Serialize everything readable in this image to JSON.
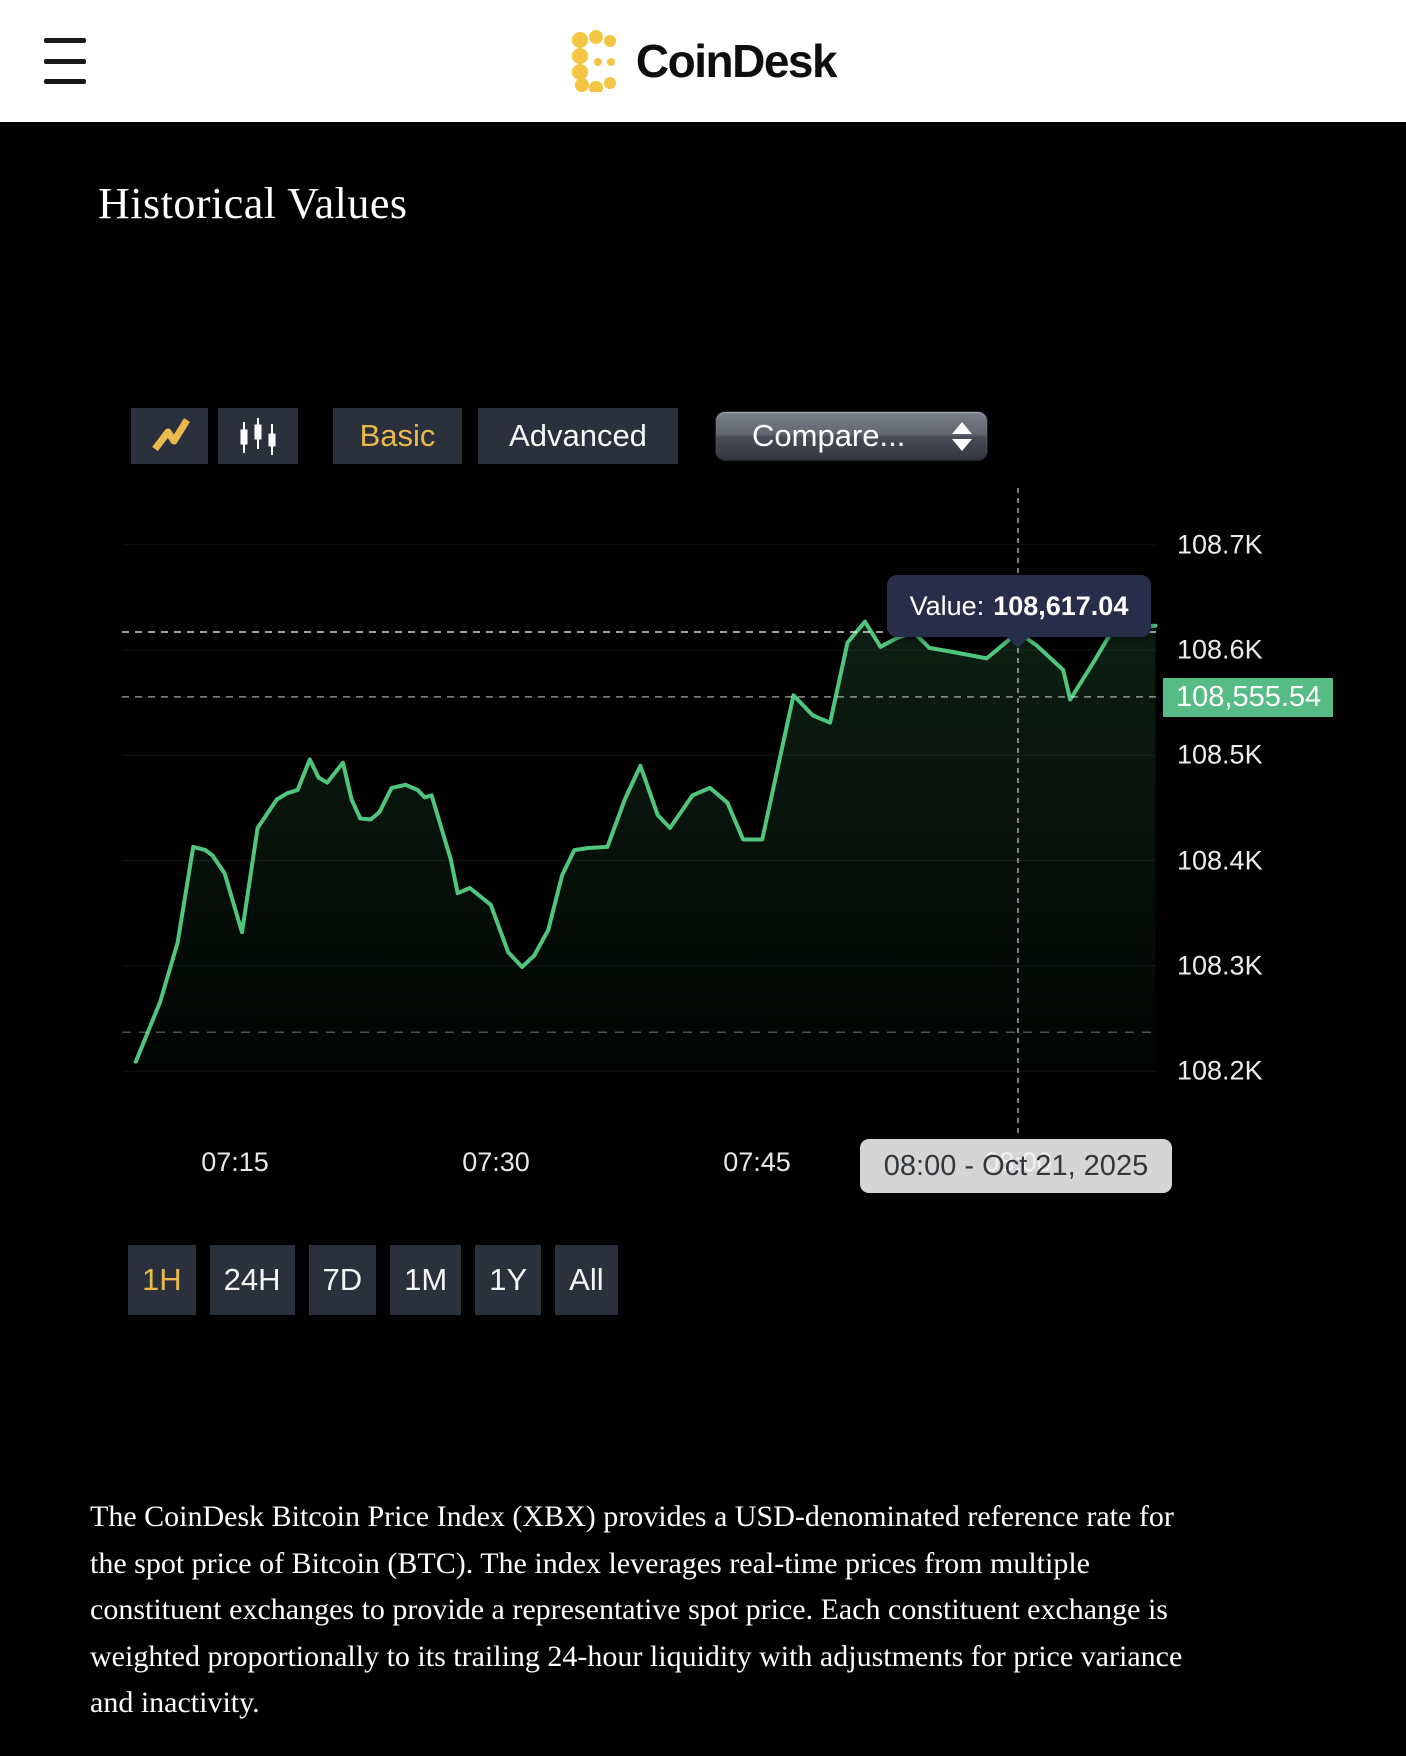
{
  "header": {
    "brand": "CoinDesk"
  },
  "page_title": "Historical Values",
  "toolbar": {
    "chart_type_buttons": [
      {
        "name": "line-chart",
        "icon": "line-chart-icon",
        "active": true
      },
      {
        "name": "candlestick-chart",
        "icon": "candlestick-icon",
        "active": false
      }
    ],
    "mode_buttons": [
      {
        "label": "Basic",
        "active": true
      },
      {
        "label": "Advanced",
        "active": false
      }
    ],
    "compare_label": "Compare..."
  },
  "chart_data": {
    "type": "area",
    "title": "",
    "xlabel": "",
    "ylabel": "",
    "grid": true,
    "legend": false,
    "x_axis": {
      "unit": "time",
      "range": [
        "07:09",
        "08:08"
      ],
      "ticks": [
        {
          "minutes": 15,
          "label": "07:15"
        },
        {
          "minutes": 30,
          "label": "07:30"
        },
        {
          "minutes": 45,
          "label": "07:45"
        },
        {
          "minutes": 60,
          "label": "08:00"
        }
      ]
    },
    "y_axis": {
      "ylim": [
        108200,
        108750
      ],
      "ticks": [
        {
          "value": 108700,
          "label": "108.7K"
        },
        {
          "value": 108600,
          "label": "108.6K"
        },
        {
          "value": 108500,
          "label": "108.5K"
        },
        {
          "value": 108400,
          "label": "108.4K"
        },
        {
          "value": 108300,
          "label": "108.3K"
        },
        {
          "value": 108200,
          "label": "108.2K"
        }
      ]
    },
    "series": [
      {
        "name": "CoinDesk Bitcoin Price Index (XBX)",
        "color": "#4fc57d",
        "points": [
          [
            9.3,
            108209
          ],
          [
            10.7,
            108266
          ],
          [
            11.7,
            108322
          ],
          [
            12.6,
            108413
          ],
          [
            13.3,
            108410
          ],
          [
            13.7,
            108405
          ],
          [
            14.4,
            108388
          ],
          [
            15.4,
            108332
          ],
          [
            16.3,
            108431
          ],
          [
            17.4,
            108458
          ],
          [
            18.0,
            108464
          ],
          [
            18.6,
            108467
          ],
          [
            19.3,
            108496
          ],
          [
            19.8,
            108479
          ],
          [
            20.3,
            108474
          ],
          [
            21.2,
            108493
          ],
          [
            21.7,
            108458
          ],
          [
            22.2,
            108440
          ],
          [
            22.8,
            108439
          ],
          [
            23.3,
            108446
          ],
          [
            24.0,
            108469
          ],
          [
            24.8,
            108472
          ],
          [
            25.5,
            108467
          ],
          [
            25.9,
            108460
          ],
          [
            26.3,
            108462
          ],
          [
            27.4,
            108401
          ],
          [
            27.8,
            108369
          ],
          [
            28.5,
            108374
          ],
          [
            28.8,
            108370
          ],
          [
            29.7,
            108358
          ],
          [
            30.7,
            108313
          ],
          [
            31.5,
            108299
          ],
          [
            32.2,
            108310
          ],
          [
            33.0,
            108334
          ],
          [
            33.8,
            108386
          ],
          [
            34.5,
            108410
          ],
          [
            35.3,
            108412
          ],
          [
            36.4,
            108413
          ],
          [
            37.4,
            108458
          ],
          [
            38.3,
            108490
          ],
          [
            39.3,
            108443
          ],
          [
            40.0,
            108431
          ],
          [
            41.3,
            108462
          ],
          [
            42.3,
            108469
          ],
          [
            43.3,
            108455
          ],
          [
            44.2,
            108420
          ],
          [
            45.3,
            108420
          ],
          [
            47.1,
            108557
          ],
          [
            48.2,
            108538
          ],
          [
            49.2,
            108531
          ],
          [
            50.2,
            108607
          ],
          [
            51.2,
            108627
          ],
          [
            52.1,
            108603
          ],
          [
            53.0,
            108611
          ],
          [
            54.0,
            108617
          ],
          [
            54.9,
            108602
          ],
          [
            56.3,
            108598
          ],
          [
            58.2,
            108592
          ],
          [
            59.0,
            108603
          ],
          [
            60.0,
            108617.04
          ],
          [
            61.1,
            108604
          ],
          [
            62.6,
            108581
          ],
          [
            63.0,
            108553
          ],
          [
            64.4,
            108590
          ],
          [
            65.9,
            108632
          ],
          [
            66.6,
            108622
          ],
          [
            67.9,
            108623
          ]
        ]
      }
    ],
    "hover": {
      "time_minutes": 60,
      "tooltip_prefix": "Value:",
      "value": 108617.04,
      "value_label": "108,617.04",
      "date_label": "08:00 - Oct 21, 2025"
    },
    "current_price": {
      "value": 108555.54,
      "label": "108,555.54"
    },
    "open_line_value": 108237
  },
  "range_buttons": [
    {
      "label": "1H",
      "active": true
    },
    {
      "label": "24H",
      "active": false
    },
    {
      "label": "7D",
      "active": false
    },
    {
      "label": "1M",
      "active": false
    },
    {
      "label": "1Y",
      "active": false
    },
    {
      "label": "All",
      "active": false
    }
  ],
  "description": "The CoinDesk Bitcoin Price Index (XBX) provides a USD-denominated reference rate for the spot price of Bitcoin (BTC). The index leverages real-time prices from multiple constituent exchanges to provide a representative spot price. Each constituent exchange is weighted proportionally to its trailing 24-hour liquidity with adjustments for price variance and inactivity.",
  "colors": {
    "page_bg": "#000000",
    "header_bg": "#ffffff",
    "accent_yellow": "#e9b94d",
    "line_green": "#4fc57d",
    "badge_green": "#57bb85",
    "tooltip_bg": "#272e49",
    "button_bg": "#2b313c",
    "date_tooltip_bg": "#f3f3f3",
    "text_white": "#f2f2f2"
  }
}
